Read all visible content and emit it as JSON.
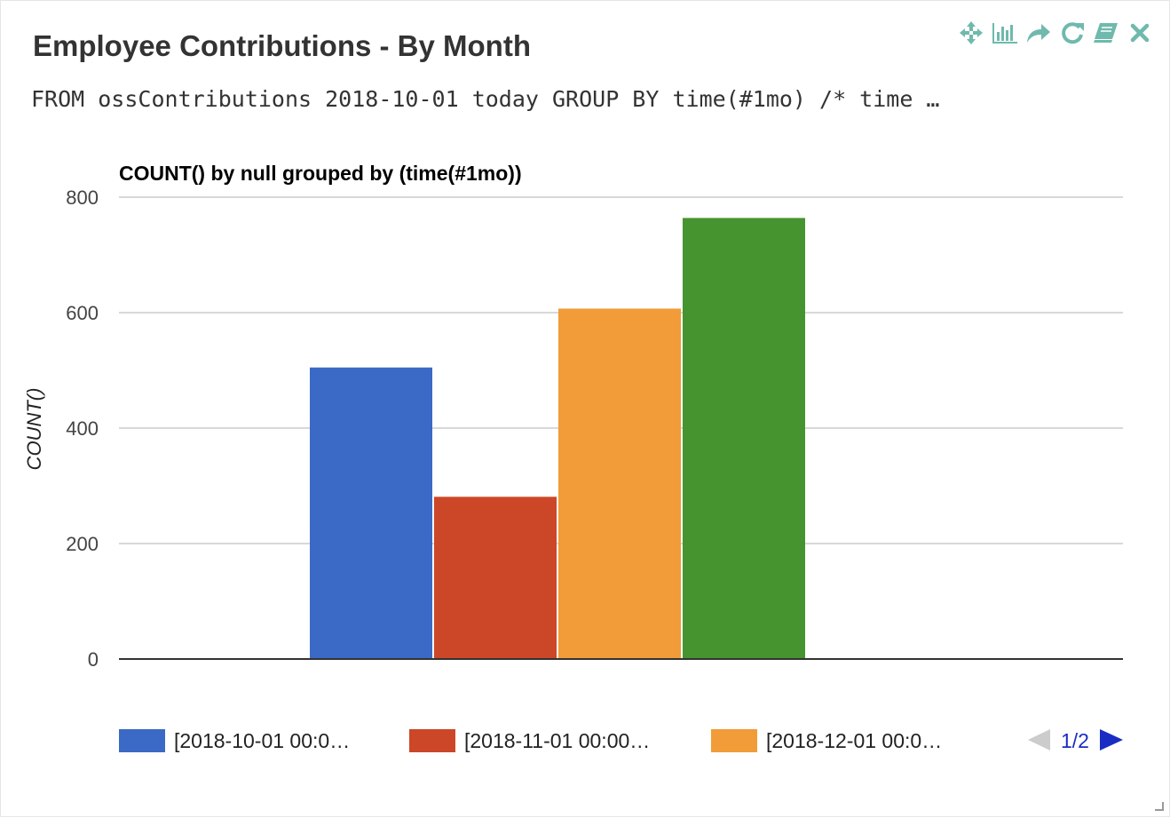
{
  "widget": {
    "title": "Employee Contributions - By Month",
    "query": "FROM ossContributions 2018-10-01 today GROUP BY time(#1mo) /* time …",
    "toolbar": {
      "icon_color": "#6fb9ad",
      "icons": [
        "move-icon",
        "bar-chart-icon",
        "share-icon",
        "refresh-icon",
        "book-icon",
        "close-icon"
      ]
    }
  },
  "chart_data": {
    "type": "bar",
    "title": "COUNT() by null grouped by (time(#1mo))",
    "ylabel": "COUNT()",
    "xlabel": "",
    "ylim": [
      0,
      800
    ],
    "yticks": [
      0,
      200,
      400,
      600,
      800
    ],
    "grid": true,
    "legend_position": "bottom",
    "series": [
      {
        "name": "[2018-10-01 00:0…",
        "value": 505,
        "color": "#3b69c6"
      },
      {
        "name": "[2018-11-01 00:00…",
        "value": 281,
        "color": "#cc4727"
      },
      {
        "name": "[2018-12-01 00:0…",
        "value": 607,
        "color": "#f19c38"
      },
      {
        "name": "",
        "value": 764,
        "color": "#46942f"
      }
    ],
    "legend_visible_count": 3,
    "pager": {
      "label": "1/2",
      "color": "#1a2dc2"
    }
  }
}
